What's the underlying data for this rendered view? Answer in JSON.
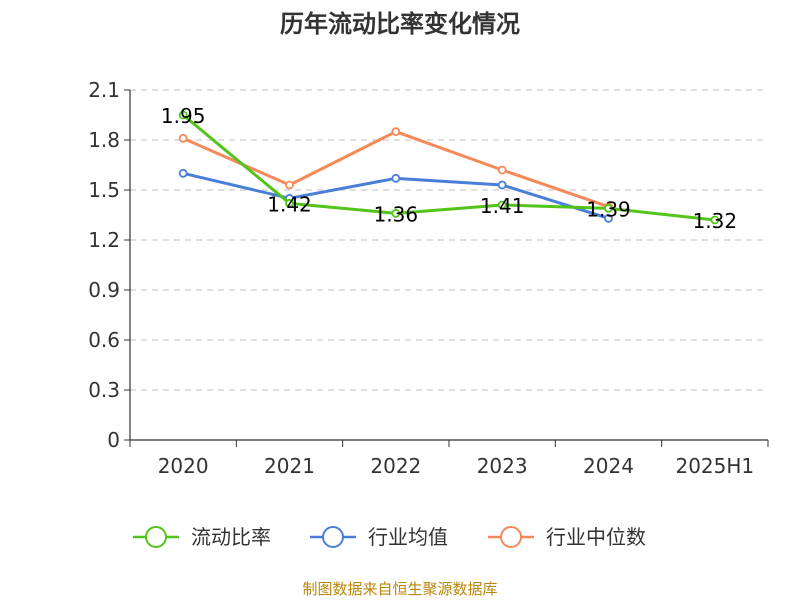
{
  "chart_data": {
    "type": "line",
    "title": "历年流动比率变化情况",
    "categories": [
      "2020",
      "2021",
      "2022",
      "2023",
      "2024",
      "2025H1"
    ],
    "ylim": [
      0,
      2.1
    ],
    "yticks": [
      "0",
      "0.3",
      "0.6",
      "0.9",
      "1.2",
      "1.5",
      "1.8",
      "2.1"
    ],
    "grid": true,
    "legend_position": "bottom",
    "series": [
      {
        "name": "流动比率",
        "color": "#52c41a",
        "values": [
          1.95,
          1.42,
          1.36,
          1.41,
          1.39,
          1.32
        ],
        "labels": [
          "1.95",
          "1.42",
          "1.36",
          "1.41",
          "1.39",
          "1.32"
        ],
        "show_labels": true
      },
      {
        "name": "行业均值",
        "color": "#4a7fd8",
        "values": [
          1.6,
          1.45,
          1.57,
          1.53,
          1.33,
          null
        ],
        "show_labels": false
      },
      {
        "name": "行业中位数",
        "color": "#f5895a",
        "values": [
          1.81,
          1.53,
          1.85,
          1.62,
          1.4,
          null
        ],
        "show_labels": false
      }
    ]
  },
  "source": "制图数据来自恒生聚源数据库"
}
